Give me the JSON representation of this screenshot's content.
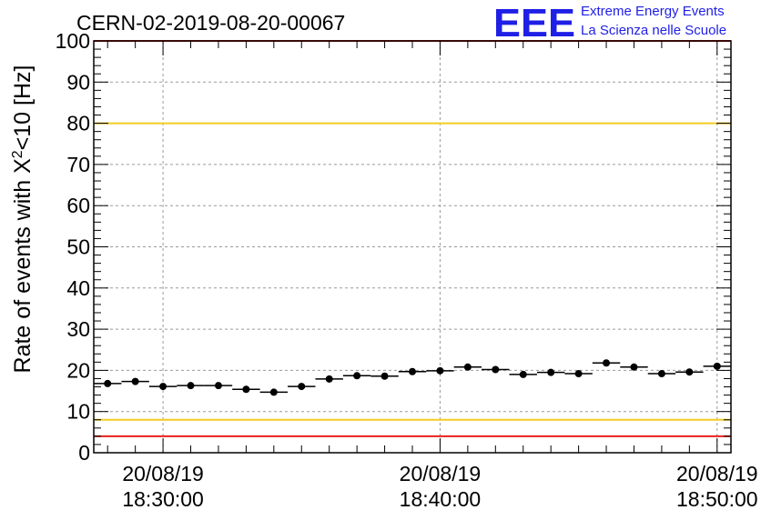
{
  "title": "CERN-02-2019-08-20-00067",
  "logo": {
    "letters": "EEE",
    "line1": "Extreme Energy Events",
    "line2": "La Scienza nelle Scuole",
    "color": "#1f1fe6"
  },
  "chart_data": {
    "type": "scatter",
    "ylabel_main": "Rate of events with X",
    "ylabel_sup": "2",
    "ylabel_tail": "<10 [Hz]",
    "ylim": [
      0,
      100
    ],
    "yticks": [
      "0",
      "10",
      "20",
      "30",
      "40",
      "50",
      "60",
      "70",
      "80",
      "90",
      "100"
    ],
    "xticks": [
      {
        "date": "20/08/19",
        "time": "18:30:00",
        "minutes": 0
      },
      {
        "date": "20/08/19",
        "time": "18:40:00",
        "minutes": 10
      },
      {
        "date": "20/08/19",
        "time": "18:50:00",
        "minutes": 20
      }
    ],
    "xlim_minutes": [
      -2.5,
      20.5
    ],
    "grid": true,
    "series": [
      {
        "minutes": [
          -2,
          -1,
          0,
          1,
          2,
          3,
          4,
          5,
          6,
          7,
          8,
          9,
          10,
          11,
          12,
          13,
          14,
          15,
          16,
          17,
          18,
          19,
          20
        ],
        "values": [
          16.8,
          17.3,
          16.1,
          16.3,
          16.3,
          15.4,
          14.7,
          16.1,
          17.9,
          18.7,
          18.6,
          19.7,
          19.9,
          20.8,
          20.2,
          19.0,
          19.5,
          19.2,
          21.8,
          20.8,
          19.2,
          19.6,
          21.0
        ],
        "color": "#000000"
      }
    ],
    "reference_lines": [
      {
        "value": 100,
        "color": "#e8201a"
      },
      {
        "value": 80,
        "color": "#f2cc22"
      },
      {
        "value": 8,
        "color": "#f2cc22"
      },
      {
        "value": 4,
        "color": "#e8201a"
      }
    ]
  }
}
